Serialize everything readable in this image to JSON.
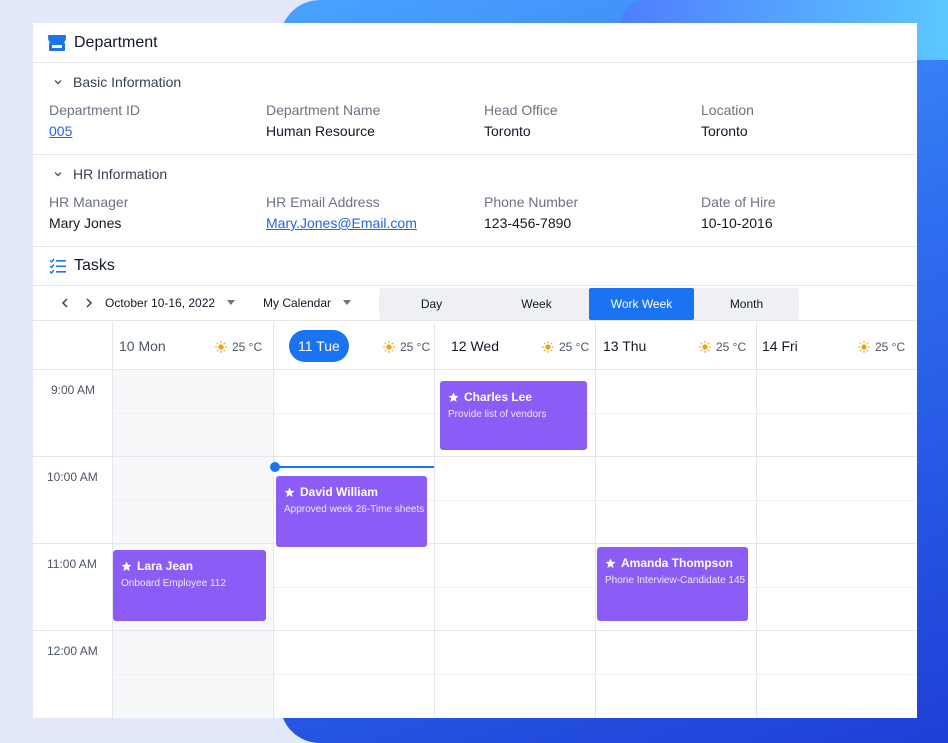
{
  "department": {
    "title": "Department",
    "basic": {
      "section_title": "Basic Information",
      "fields": [
        {
          "label": "Department ID",
          "value": "005"
        },
        {
          "label": "Department Name",
          "value": "Human Resource"
        },
        {
          "label": "Head Office",
          "value": "Toronto"
        },
        {
          "label": "Location",
          "value": "Toronto"
        }
      ]
    },
    "hr": {
      "section_title": "HR Information",
      "fields": [
        {
          "label": "HR Manager",
          "value": "Mary Jones"
        },
        {
          "label": "HR Email Address",
          "value": "Mary.Jones@Email.com"
        },
        {
          "label": "Phone Number",
          "value": "123-456-7890"
        },
        {
          "label": "Date of Hire",
          "value": "10-10-2016"
        }
      ]
    }
  },
  "tasks": {
    "title": "Tasks",
    "toolbar": {
      "date_range": "October 10-16, 2022",
      "calendar": "My Calendar",
      "views": [
        "Day",
        "Week",
        "Work Week",
        "Month"
      ],
      "active_view": "Work Week"
    },
    "days": [
      {
        "label": "10 Mon",
        "weather": "25 °C"
      },
      {
        "label": "11 Tue",
        "weather": "25 °C"
      },
      {
        "label": "12 Wed",
        "weather": "25 °C"
      },
      {
        "label": "13 Thu",
        "weather": "25 °C"
      },
      {
        "label": "14 Fri",
        "weather": "25 °C"
      }
    ],
    "times": [
      "9:00 AM",
      "10:00 AM",
      "11:00 AM",
      "12:00 AM"
    ],
    "events": [
      {
        "day": "12 Wed",
        "title": "Charles Lee",
        "subtitle": "Provide list of vendors"
      },
      {
        "day": "11 Tue",
        "title": "David William",
        "subtitle": "Approved week 26-Time sheets"
      },
      {
        "day": "10 Mon",
        "title": "Lara Jean",
        "subtitle": "Onboard Employee 112"
      },
      {
        "day": "13 Thu",
        "title": "Amanda Thompson",
        "subtitle": "Phone Interview-Candidate 145"
      }
    ]
  },
  "colors": {
    "accent": "#1a73f0",
    "event": "#8b5cf6"
  }
}
